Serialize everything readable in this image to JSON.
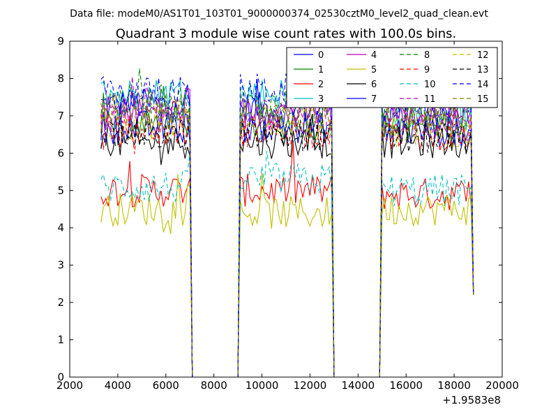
{
  "chart_data": {
    "type": "line",
    "suptitle": "Data file: modeM0/AS1T01_103T01_9000000374_02530cztM0_level2_quad_clean.evt",
    "title": "Quadrant 3 module wise count rates with 100.0s bins.",
    "xlabel": "",
    "ylabel": "",
    "x_offset_label": "+1.9583e8",
    "xlim": [
      2000,
      20000
    ],
    "ylim": [
      0,
      9
    ],
    "x_ticks": [
      2000,
      4000,
      6000,
      8000,
      10000,
      12000,
      14000,
      16000,
      18000,
      20000
    ],
    "y_ticks": [
      0,
      1,
      2,
      3,
      4,
      5,
      6,
      7,
      8,
      9
    ],
    "legend_position": "top-right",
    "segments": [
      [
        3300,
        7050
      ],
      [
        9050,
        12950
      ],
      [
        14950,
        18750
      ]
    ],
    "series": [
      {
        "name": "0",
        "color": "#0000ff",
        "style": "solid",
        "levels": [
          7.3,
          7.2,
          7.1
        ]
      },
      {
        "name": "1",
        "color": "#008000",
        "style": "solid",
        "levels": [
          6.9,
          6.8,
          6.8
        ]
      },
      {
        "name": "2",
        "color": "#ff0000",
        "style": "solid",
        "levels": [
          5.0,
          5.0,
          4.9
        ]
      },
      {
        "name": "3",
        "color": "#00bfbf",
        "style": "solid",
        "levels": [
          7.6,
          7.6,
          7.0
        ]
      },
      {
        "name": "4",
        "color": "#bf00bf",
        "style": "solid",
        "levels": [
          7.1,
          7.1,
          7.0
        ]
      },
      {
        "name": "5",
        "color": "#bfbf00",
        "style": "solid",
        "levels": [
          4.5,
          4.4,
          4.5
        ]
      },
      {
        "name": "6",
        "color": "#000000",
        "style": "solid",
        "levels": [
          6.3,
          6.3,
          6.3
        ]
      },
      {
        "name": "7",
        "color": "#0000ff",
        "style": "solid",
        "levels": [
          6.7,
          6.7,
          6.6
        ]
      },
      {
        "name": "8",
        "color": "#008000",
        "style": "dashed",
        "levels": [
          7.4,
          7.3,
          7.1
        ]
      },
      {
        "name": "9",
        "color": "#ff0000",
        "style": "dashed",
        "levels": [
          6.6,
          6.6,
          6.5
        ]
      },
      {
        "name": "10",
        "color": "#00bfbf",
        "style": "dashed",
        "levels": [
          5.1,
          5.3,
          5.0
        ]
      },
      {
        "name": "11",
        "color": "#bf00bf",
        "style": "dashed",
        "levels": [
          7.0,
          7.0,
          6.9
        ]
      },
      {
        "name": "12",
        "color": "#bfbf00",
        "style": "dashed",
        "levels": [
          6.8,
          6.8,
          6.6
        ]
      },
      {
        "name": "13",
        "color": "#000000",
        "style": "dashed",
        "levels": [
          6.5,
          6.5,
          6.4
        ]
      },
      {
        "name": "14",
        "color": "#0000ff",
        "style": "dashed",
        "levels": [
          7.6,
          7.7,
          7.4
        ]
      },
      {
        "name": "15",
        "color": "#808000",
        "style": "dashed",
        "levels": [
          7.2,
          7.1,
          6.9
        ]
      }
    ]
  }
}
